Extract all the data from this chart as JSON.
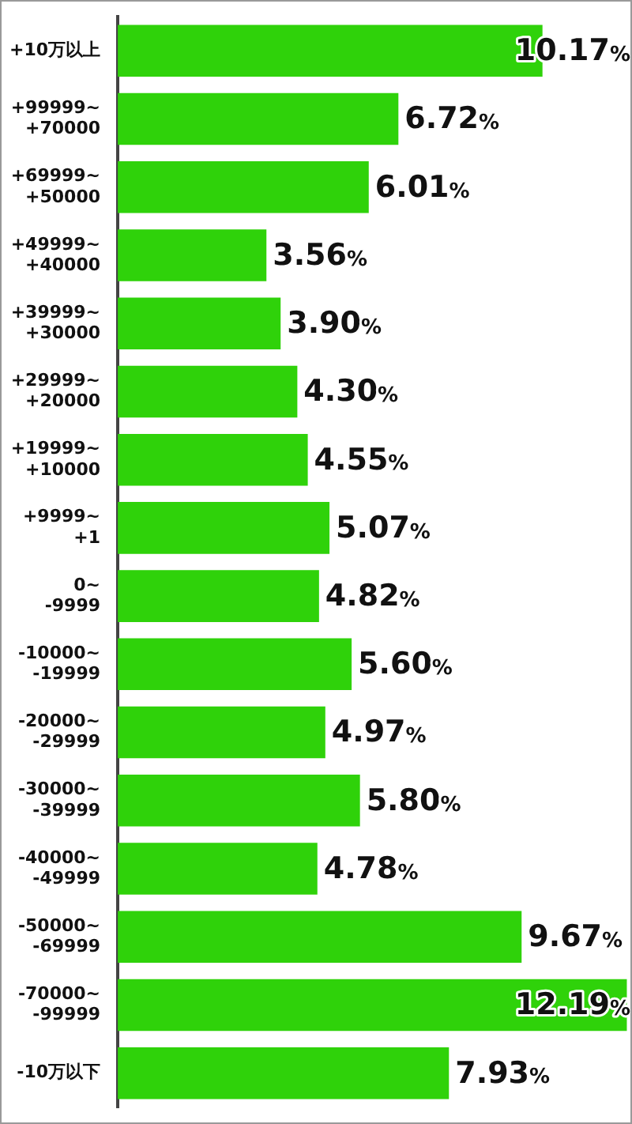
{
  "chart_data": {
    "type": "bar",
    "orientation": "horizontal",
    "categories": [
      "+10万以上",
      "+99999~\n+70000",
      "+69999~\n+50000",
      "+49999~\n+40000",
      "+39999~\n+30000",
      "+29999~\n+20000",
      "+19999~\n+10000",
      "+9999~\n+1",
      "0~\n-9999",
      "-10000~\n-19999",
      "-20000~\n-29999",
      "-30000~\n-39999",
      "-40000~\n-49999",
      "-50000~\n-69999",
      "-70000~\n-99999",
      "-10万以下"
    ],
    "values": [
      10.17,
      6.72,
      6.01,
      3.56,
      3.9,
      4.3,
      4.55,
      5.07,
      4.82,
      5.6,
      4.97,
      5.8,
      4.78,
      9.67,
      12.19,
      7.93
    ],
    "value_labels": [
      "10.17%",
      "6.72%",
      "6.01%",
      "3.56%",
      "3.90%",
      "4.30%",
      "4.55%",
      "5.07%",
      "4.82%",
      "5.60%",
      "4.97%",
      "5.80%",
      "4.78%",
      "9.67%",
      "12.19%",
      "7.93%"
    ],
    "color": "#2fd20a",
    "xlim": [
      0,
      12.2
    ],
    "tick_labels": "y",
    "legend": false
  }
}
